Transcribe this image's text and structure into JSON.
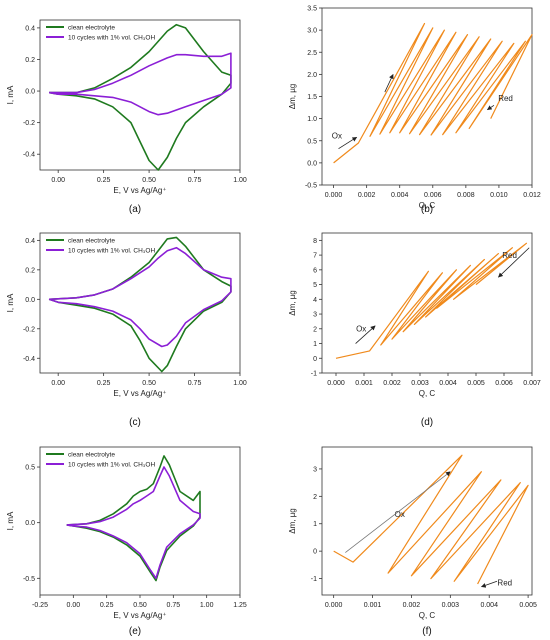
{
  "chart_data": [
    {
      "id": "a",
      "panel_label": "(a)",
      "type": "line",
      "xlabel": "E, V vs Ag/Ag⁺",
      "ylabel": "I, mA",
      "xlim": [
        -0.1,
        1.0
      ],
      "ylim": [
        -0.5,
        0.45
      ],
      "xticks": [
        "0.00",
        "0.25",
        "0.50",
        "0.75",
        "1.00"
      ],
      "xtick_values": [
        0,
        0.25,
        0.5,
        0.75,
        1.0
      ],
      "yticks": [
        "-0.4",
        "-0.2",
        "0.0",
        "0.2",
        "0.4"
      ],
      "ytick_values": [
        -0.4,
        -0.2,
        0,
        0.2,
        0.4
      ],
      "legend_position": "top-left",
      "series": [
        {
          "name": "clean electrolyte",
          "color": "#1f7a1f",
          "x": [
            -0.05,
            0.1,
            0.2,
            0.3,
            0.4,
            0.5,
            0.6,
            0.65,
            0.7,
            0.8,
            0.9,
            0.95,
            0.95,
            0.9,
            0.8,
            0.7,
            0.65,
            0.6,
            0.55,
            0.5,
            0.45,
            0.4,
            0.3,
            0.2,
            0.1,
            0.0,
            -0.05
          ],
          "y": [
            -0.01,
            -0.01,
            0.02,
            0.08,
            0.15,
            0.25,
            0.38,
            0.42,
            0.4,
            0.25,
            0.12,
            0.1,
            0.05,
            -0.02,
            -0.1,
            -0.2,
            -0.3,
            -0.42,
            -0.5,
            -0.44,
            -0.32,
            -0.2,
            -0.1,
            -0.05,
            -0.03,
            -0.02,
            -0.01
          ]
        },
        {
          "name": "10 cycles with 1% vol. CH₃OH",
          "color": "#8b1fd6",
          "x": [
            -0.05,
            0.1,
            0.2,
            0.3,
            0.4,
            0.5,
            0.6,
            0.65,
            0.7,
            0.8,
            0.9,
            0.95,
            0.95,
            0.9,
            0.8,
            0.7,
            0.65,
            0.6,
            0.55,
            0.5,
            0.45,
            0.4,
            0.3,
            0.2,
            0.1,
            0.0,
            -0.05
          ],
          "y": [
            -0.01,
            -0.01,
            0.01,
            0.05,
            0.1,
            0.16,
            0.21,
            0.23,
            0.23,
            0.22,
            0.22,
            0.24,
            0.02,
            -0.02,
            -0.06,
            -0.1,
            -0.12,
            -0.14,
            -0.15,
            -0.13,
            -0.1,
            -0.07,
            -0.04,
            -0.03,
            -0.02,
            -0.02,
            -0.01
          ]
        }
      ]
    },
    {
      "id": "b",
      "panel_label": "(b)",
      "type": "line",
      "xlabel": "Q, C",
      "ylabel": "Δm, µg",
      "xlim": [
        -0.0007,
        0.012
      ],
      "ylim": [
        -0.5,
        3.5
      ],
      "xticks": [
        "0.000",
        "0.002",
        "0.004",
        "0.006",
        "0.008",
        "0.010",
        "0.012"
      ],
      "xtick_values": [
        0,
        0.002,
        0.004,
        0.006,
        0.008,
        0.01,
        0.012
      ],
      "yticks": [
        "-0.5",
        "0.0",
        "0.5",
        "1.0",
        "1.5",
        "2.0",
        "2.5",
        "3.0",
        "3.5"
      ],
      "ytick_values": [
        -0.5,
        0,
        0.5,
        1.0,
        1.5,
        2.0,
        2.5,
        3.0,
        3.5
      ],
      "annotations": [
        {
          "text": "Ox",
          "x": 0.0002,
          "y": 0.55
        },
        {
          "text": "Red",
          "x": 0.0104,
          "y": 1.4
        }
      ],
      "series": [
        {
          "name": "",
          "color": "#f08a1c",
          "x": [
            0.0,
            0.0015,
            0.0055,
            0.0022,
            0.006,
            0.0028,
            0.0067,
            0.0034,
            0.0074,
            0.004,
            0.0081,
            0.0046,
            0.0088,
            0.0052,
            0.0095,
            0.0059,
            0.0102,
            0.0066,
            0.0109,
            0.0074,
            0.0116,
            0.0082,
            0.012,
            0.0095
          ],
          "y": [
            0.0,
            0.45,
            3.15,
            0.6,
            3.05,
            0.65,
            3.0,
            0.68,
            2.95,
            0.68,
            2.9,
            0.66,
            2.85,
            0.64,
            2.8,
            0.63,
            2.75,
            0.64,
            2.7,
            0.68,
            2.75,
            0.78,
            2.9,
            1.0
          ]
        }
      ]
    },
    {
      "id": "c",
      "panel_label": "(c)",
      "type": "line",
      "xlabel": "E, V vs Ag/Ag⁺",
      "ylabel": "I, mA",
      "xlim": [
        -0.1,
        1.0
      ],
      "ylim": [
        -0.5,
        0.45
      ],
      "xticks": [
        "0.00",
        "0.25",
        "0.50",
        "0.75",
        "1.00"
      ],
      "xtick_values": [
        0,
        0.25,
        0.5,
        0.75,
        1.0
      ],
      "yticks": [
        "-0.4",
        "-0.2",
        "0.0",
        "0.2",
        "0.4"
      ],
      "ytick_values": [
        -0.4,
        -0.2,
        0,
        0.2,
        0.4
      ],
      "legend_position": "top-left",
      "series": [
        {
          "name": "clean electrolyte",
          "color": "#1f7a1f",
          "x": [
            -0.05,
            0.1,
            0.2,
            0.3,
            0.4,
            0.5,
            0.55,
            0.6,
            0.65,
            0.7,
            0.8,
            0.9,
            0.95,
            0.95,
            0.9,
            0.8,
            0.7,
            0.65,
            0.6,
            0.57,
            0.5,
            0.45,
            0.4,
            0.3,
            0.2,
            0.1,
            0.0,
            -0.05
          ],
          "y": [
            0.0,
            0.01,
            0.03,
            0.07,
            0.15,
            0.25,
            0.33,
            0.41,
            0.42,
            0.36,
            0.2,
            0.12,
            0.09,
            0.05,
            -0.02,
            -0.08,
            -0.2,
            -0.32,
            -0.45,
            -0.49,
            -0.4,
            -0.28,
            -0.18,
            -0.1,
            -0.06,
            -0.04,
            -0.02,
            0.0
          ]
        },
        {
          "name": "10 cycles with 1% vol. CH₃OH",
          "color": "#8b1fd6",
          "x": [
            -0.05,
            0.1,
            0.2,
            0.3,
            0.4,
            0.5,
            0.55,
            0.6,
            0.65,
            0.7,
            0.8,
            0.9,
            0.95,
            0.95,
            0.9,
            0.8,
            0.7,
            0.65,
            0.6,
            0.57,
            0.5,
            0.45,
            0.4,
            0.3,
            0.2,
            0.1,
            0.0,
            -0.05
          ],
          "y": [
            0.0,
            0.01,
            0.03,
            0.07,
            0.14,
            0.22,
            0.28,
            0.33,
            0.35,
            0.31,
            0.2,
            0.15,
            0.14,
            0.05,
            -0.01,
            -0.07,
            -0.16,
            -0.25,
            -0.31,
            -0.32,
            -0.27,
            -0.2,
            -0.14,
            -0.08,
            -0.05,
            -0.03,
            -0.02,
            0.0
          ]
        }
      ]
    },
    {
      "id": "d",
      "panel_label": "(d)",
      "type": "line",
      "xlabel": "Q, C",
      "ylabel": "Δm, µg",
      "xlim": [
        -0.0005,
        0.007
      ],
      "ylim": [
        -1.0,
        8.5
      ],
      "xticks": [
        "0.000",
        "0.001",
        "0.002",
        "0.003",
        "0.004",
        "0.005",
        "0.006",
        "0.007"
      ],
      "xtick_values": [
        0,
        0.001,
        0.002,
        0.003,
        0.004,
        0.005,
        0.006,
        0.007
      ],
      "yticks": [
        "-1",
        "0",
        "1",
        "2",
        "3",
        "4",
        "5",
        "6",
        "7",
        "8"
      ],
      "ytick_values": [
        -1,
        0,
        1,
        2,
        3,
        4,
        5,
        6,
        7,
        8
      ],
      "annotations": [
        {
          "text": "Ox",
          "x": 0.0009,
          "y": 1.8
        },
        {
          "text": "Red",
          "x": 0.0062,
          "y": 6.8
        }
      ],
      "series": [
        {
          "name": "",
          "color": "#f08a1c",
          "x": [
            0.0,
            0.0012,
            0.0033,
            0.0016,
            0.0038,
            0.002,
            0.0043,
            0.0024,
            0.0048,
            0.0028,
            0.0053,
            0.0032,
            0.0058,
            0.0036,
            0.0063,
            0.0042,
            0.0068,
            0.005
          ],
          "y": [
            0.0,
            0.5,
            5.9,
            0.9,
            5.8,
            1.3,
            6.0,
            1.8,
            6.3,
            2.3,
            6.7,
            2.8,
            7.1,
            3.4,
            7.5,
            4.0,
            7.8,
            5.0
          ]
        }
      ]
    },
    {
      "id": "e",
      "panel_label": "(e)",
      "type": "line",
      "xlabel": "E, V vs Ag/Ag⁺",
      "ylabel": "I, mA",
      "xlim": [
        -0.25,
        1.25
      ],
      "ylim": [
        -0.65,
        0.68
      ],
      "xticks": [
        "-0.25",
        "0.00",
        "0.25",
        "0.50",
        "0.75",
        "1.00",
        "1.25"
      ],
      "xtick_values": [
        -0.25,
        0,
        0.25,
        0.5,
        0.75,
        1.0,
        1.25
      ],
      "yticks": [
        "-0.5",
        "0.0",
        "0.5"
      ],
      "ytick_values": [
        -0.5,
        0,
        0.5
      ],
      "legend_position": "top-left",
      "series": [
        {
          "name": "clean electrolyte",
          "color": "#1f7a1f",
          "x": [
            -0.05,
            0.1,
            0.2,
            0.3,
            0.4,
            0.45,
            0.5,
            0.55,
            0.6,
            0.65,
            0.68,
            0.72,
            0.8,
            0.9,
            0.95,
            0.95,
            0.9,
            0.8,
            0.7,
            0.65,
            0.62,
            0.58,
            0.5,
            0.4,
            0.3,
            0.2,
            0.1,
            0.0,
            -0.05
          ],
          "y": [
            -0.02,
            -0.01,
            0.02,
            0.08,
            0.17,
            0.24,
            0.28,
            0.3,
            0.35,
            0.5,
            0.6,
            0.52,
            0.28,
            0.2,
            0.28,
            0.05,
            -0.03,
            -0.12,
            -0.25,
            -0.4,
            -0.52,
            -0.45,
            -0.3,
            -0.2,
            -0.13,
            -0.08,
            -0.05,
            -0.03,
            -0.02
          ]
        },
        {
          "name": "10 cycles with 1% vol. CH₃OH",
          "color": "#8b1fd6",
          "x": [
            -0.05,
            0.1,
            0.2,
            0.3,
            0.4,
            0.45,
            0.5,
            0.55,
            0.6,
            0.65,
            0.68,
            0.72,
            0.8,
            0.9,
            0.95,
            0.95,
            0.9,
            0.8,
            0.7,
            0.65,
            0.62,
            0.58,
            0.5,
            0.4,
            0.3,
            0.2,
            0.1,
            0.0,
            -0.05
          ],
          "y": [
            -0.02,
            -0.01,
            0.01,
            0.05,
            0.12,
            0.17,
            0.2,
            0.24,
            0.28,
            0.42,
            0.5,
            0.42,
            0.2,
            0.1,
            0.08,
            0.04,
            -0.02,
            -0.1,
            -0.22,
            -0.38,
            -0.5,
            -0.43,
            -0.28,
            -0.18,
            -0.12,
            -0.07,
            -0.04,
            -0.03,
            -0.02
          ]
        }
      ]
    },
    {
      "id": "f",
      "panel_label": "(f)",
      "type": "line",
      "xlabel": "Q, C",
      "ylabel": "Δm, µg",
      "xlim": [
        -0.0003,
        0.0051
      ],
      "ylim": [
        -1.6,
        3.8
      ],
      "xticks": [
        "0.000",
        "0.001",
        "0.002",
        "0.003",
        "0.004",
        "0.005"
      ],
      "xtick_values": [
        0,
        0.001,
        0.002,
        0.003,
        0.004,
        0.005
      ],
      "yticks": [
        "-1",
        "0",
        "1",
        "2",
        "3"
      ],
      "ytick_values": [
        -1,
        0,
        1,
        2,
        3
      ],
      "annotations": [
        {
          "text": "Ox",
          "x": 0.0017,
          "y": 1.25
        },
        {
          "text": "Red",
          "x": 0.0044,
          "y": -1.25
        }
      ],
      "series": [
        {
          "name": "",
          "color": "#f08a1c",
          "x": [
            0.0,
            0.0005,
            0.0033,
            0.0014,
            0.0038,
            0.002,
            0.0043,
            0.0025,
            0.0048,
            0.0031,
            0.005,
            0.0037
          ],
          "y": [
            0.0,
            -0.4,
            3.5,
            -0.8,
            2.9,
            -0.9,
            2.6,
            -1.0,
            2.5,
            -1.1,
            2.4,
            -1.2
          ]
        }
      ]
    }
  ]
}
